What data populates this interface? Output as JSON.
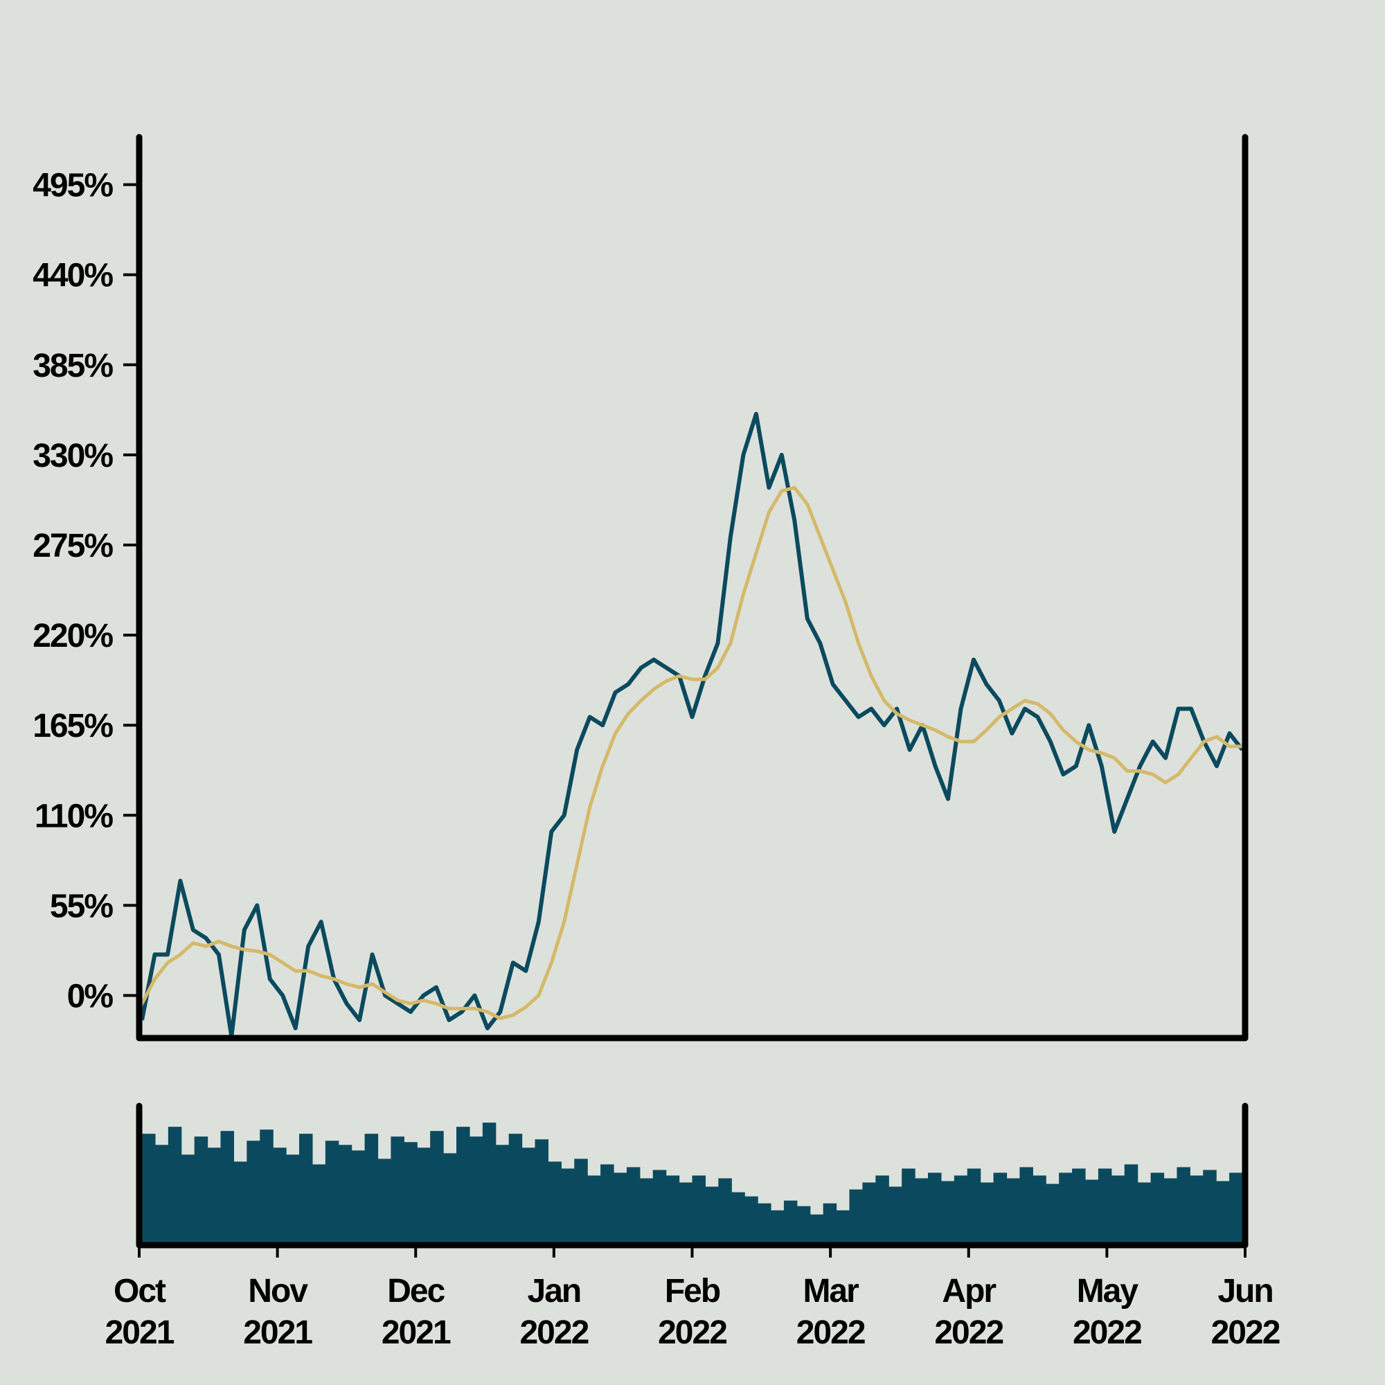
{
  "chart_data": [
    {
      "type": "line",
      "ylim": [
        -26,
        524
      ],
      "yticks": [
        {
          "value": 0,
          "label": "0%"
        },
        {
          "value": 55,
          "label": "55%"
        },
        {
          "value": 110,
          "label": "110%"
        },
        {
          "value": 165,
          "label": "165%"
        },
        {
          "value": 220,
          "label": "220%"
        },
        {
          "value": 275,
          "label": "275%"
        },
        {
          "value": 330,
          "label": "330%"
        },
        {
          "value": 385,
          "label": "385%"
        },
        {
          "value": 440,
          "label": "440%"
        },
        {
          "value": 495,
          "label": "495%"
        }
      ],
      "series": [
        {
          "color": "#0b4a5e",
          "values": [
            -15,
            25,
            25,
            70,
            40,
            35,
            25,
            -25,
            40,
            55,
            10,
            0,
            -20,
            30,
            45,
            10,
            -5,
            -15,
            25,
            0,
            -5,
            -10,
            0,
            5,
            -15,
            -10,
            0,
            -20,
            -10,
            20,
            15,
            45,
            100,
            110,
            150,
            170,
            165,
            185,
            190,
            200,
            205,
            200,
            195,
            170,
            195,
            215,
            280,
            330,
            355,
            310,
            330,
            290,
            230,
            215,
            190,
            180,
            170,
            175,
            165,
            175,
            150,
            165,
            140,
            120,
            175,
            205,
            190,
            180,
            160,
            175,
            170,
            155,
            135,
            140,
            165,
            140,
            100,
            120,
            140,
            155,
            145,
            175,
            175,
            155,
            140,
            160,
            150
          ]
        },
        {
          "color": "#d4b96a",
          "values": [
            -5,
            10,
            20,
            25,
            32,
            30,
            33,
            30,
            28,
            27,
            25,
            20,
            15,
            15,
            12,
            10,
            7,
            5,
            7,
            2,
            -3,
            -5,
            -3,
            -5,
            -8,
            -8,
            -8,
            -10,
            -14,
            -12,
            -7,
            0,
            20,
            45,
            80,
            115,
            140,
            160,
            172,
            180,
            187,
            192,
            195,
            193,
            193,
            200,
            215,
            245,
            270,
            295,
            308,
            310,
            300,
            280,
            260,
            240,
            215,
            195,
            180,
            172,
            168,
            165,
            162,
            158,
            155,
            155,
            162,
            170,
            175,
            180,
            178,
            172,
            162,
            155,
            150,
            148,
            145,
            137,
            137,
            135,
            130,
            135,
            145,
            155,
            158,
            152,
            152
          ]
        }
      ]
    },
    {
      "type": "bar",
      "color": "#0b4a5e",
      "ylim": [
        0,
        100
      ],
      "values": [
        80,
        72,
        85,
        65,
        78,
        70,
        82,
        60,
        75,
        83,
        70,
        65,
        80,
        58,
        75,
        72,
        68,
        80,
        62,
        78,
        74,
        70,
        82,
        66,
        85,
        78,
        88,
        72,
        80,
        70,
        76,
        60,
        55,
        62,
        50,
        58,
        52,
        56,
        48,
        54,
        50,
        45,
        50,
        42,
        48,
        38,
        35,
        30,
        25,
        32,
        28,
        22,
        30,
        25,
        40,
        45,
        50,
        42,
        55,
        48,
        52,
        46,
        50,
        55,
        45,
        52,
        48,
        56,
        50,
        44,
        52,
        55,
        47,
        55,
        50,
        58,
        45,
        52,
        48,
        56,
        50,
        54,
        46,
        52
      ],
      "xtick_labels": [
        "Oct 2021",
        "Nov 2021",
        "Dec 2021",
        "Jan 2022",
        "Feb 2022",
        "Mar 2022",
        "Apr 2022",
        "May 2022",
        "Jun 2022"
      ]
    }
  ]
}
